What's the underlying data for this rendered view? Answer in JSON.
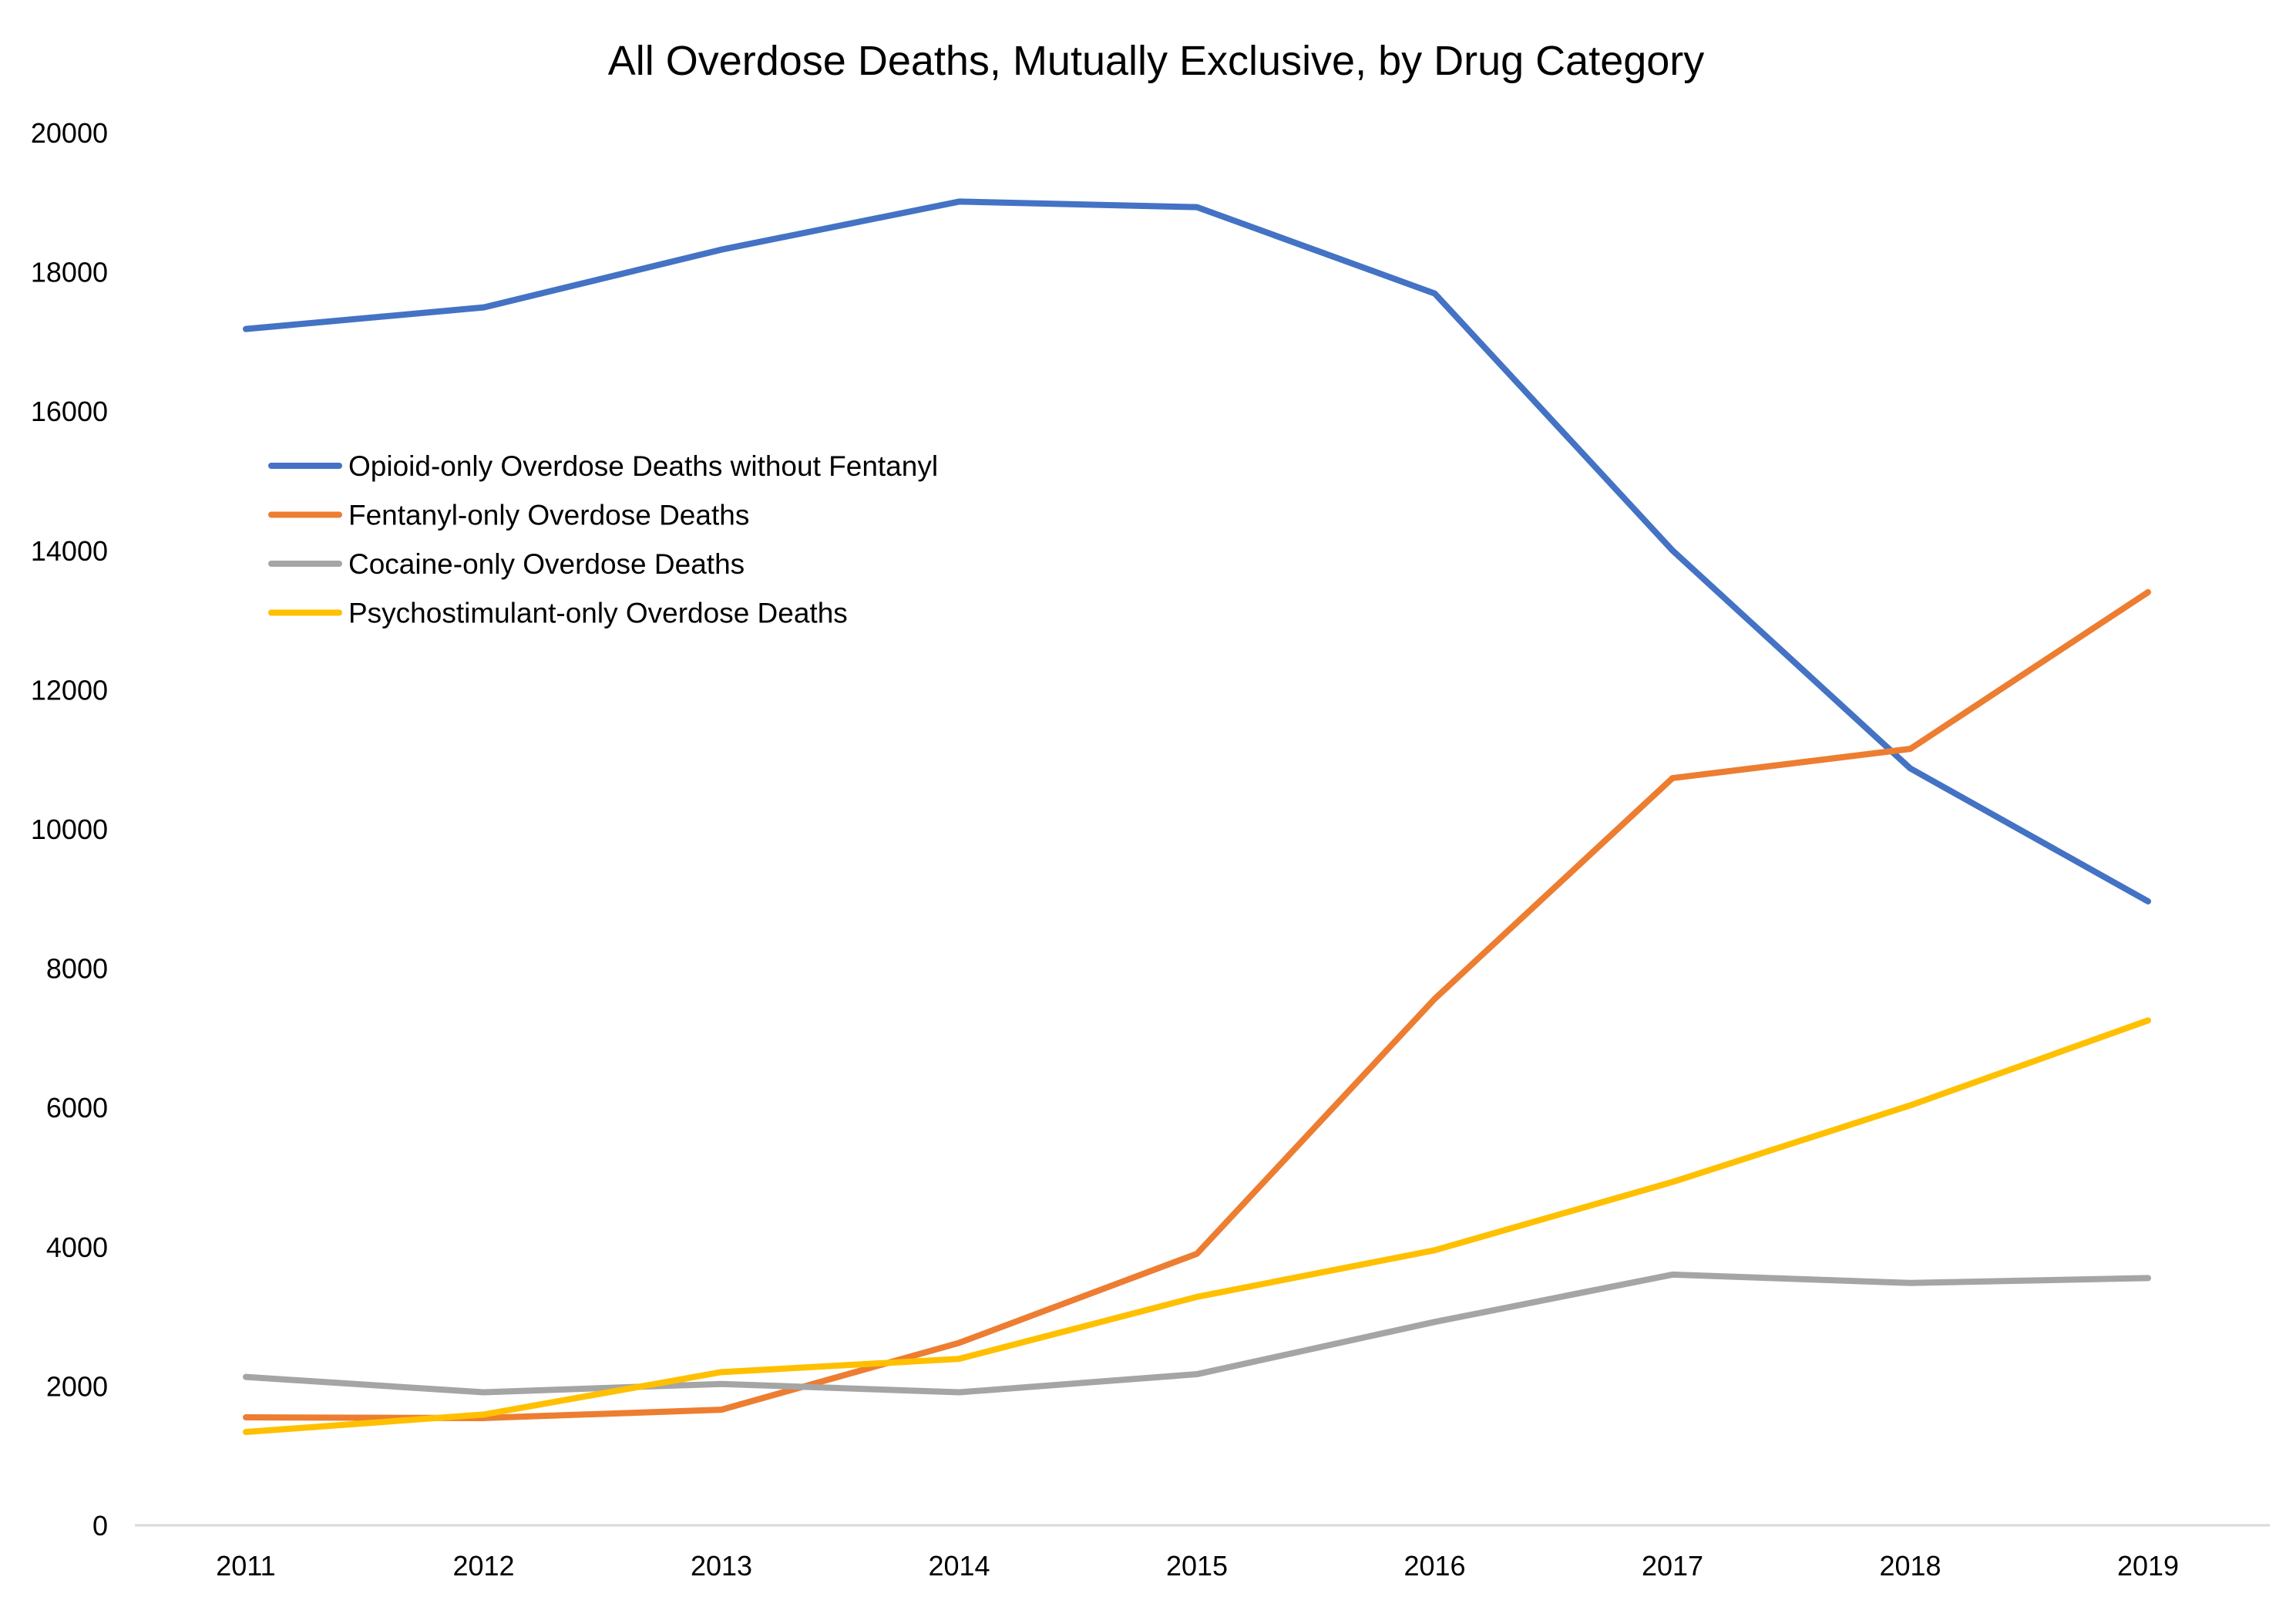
{
  "chart_data": {
    "type": "line",
    "title": "All Overdose Deaths, Mutually Exclusive, by Drug Category",
    "xlabel": "",
    "ylabel": "",
    "categories": [
      "2011",
      "2012",
      "2013",
      "2014",
      "2015",
      "2016",
      "2017",
      "2018",
      "2019"
    ],
    "ylim": [
      0,
      20000
    ],
    "yticks": [
      "0",
      "2000",
      "4000",
      "6000",
      "8000",
      "10000",
      "12000",
      "14000",
      "16000",
      "18000",
      "20000"
    ],
    "grid": false,
    "legend_position": "upper-left inside plot",
    "series": [
      {
        "name": "Opioid-only Overdose Deaths without Fentanyl",
        "color": "#4472C4",
        "values": [
          17180,
          17490,
          18320,
          19010,
          18930,
          17690,
          14000,
          10870,
          8960
        ]
      },
      {
        "name": "Fentanyl-only Overdose Deaths",
        "color": "#ED7D31",
        "values": [
          1550,
          1540,
          1660,
          2620,
          3900,
          7560,
          10730,
          11150,
          13400
        ]
      },
      {
        "name": "Cocaine-only Overdose Deaths",
        "color": "#A5A5A5",
        "values": [
          2130,
          1910,
          2030,
          1910,
          2170,
          2920,
          3600,
          3480,
          3550
        ]
      },
      {
        "name": "Psychostimulant-only Overdose Deaths",
        "color": "#FFC000",
        "values": [
          1340,
          1590,
          2200,
          2390,
          3280,
          3950,
          4930,
          6030,
          7250
        ]
      }
    ]
  }
}
